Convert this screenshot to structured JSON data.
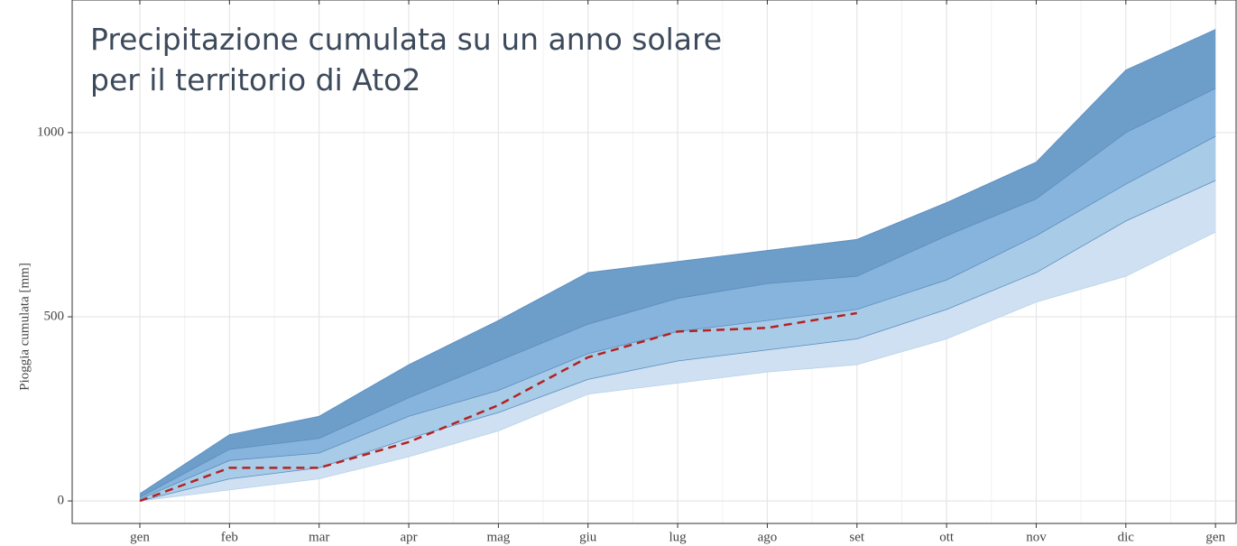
{
  "chart_data": {
    "type": "area",
    "title_lines": [
      "Precipitazione cumulata su un anno solare",
      "per il territorio di Ato2"
    ],
    "y_label": "Pioggia cumulata [mm]",
    "categories": [
      "gen",
      "feb",
      "mar",
      "apr",
      "mag",
      "giu",
      "lug",
      "ago",
      "set",
      "ott",
      "nov",
      "dic",
      "gen"
    ],
    "series": [
      {
        "color": "#6d9dc9",
        "values": [
          20,
          180,
          230,
          370,
          490,
          620,
          650,
          680,
          710,
          810,
          920,
          1170,
          1280
        ]
      },
      {
        "color": "#86b4dc",
        "values": [
          10,
          140,
          170,
          280,
          380,
          480,
          550,
          590,
          610,
          720,
          820,
          1000,
          1120
        ]
      },
      {
        "color": "#a8cbe7",
        "values": [
          5,
          110,
          130,
          230,
          300,
          400,
          460,
          490,
          520,
          600,
          720,
          860,
          990
        ]
      },
      {
        "color": "#cee0f1",
        "values": [
          0,
          60,
          90,
          170,
          240,
          330,
          380,
          410,
          440,
          520,
          620,
          760,
          870
        ]
      },
      {
        "color": "#ffffff",
        "values": [
          0,
          30,
          60,
          120,
          190,
          290,
          320,
          350,
          370,
          440,
          540,
          610,
          730
        ]
      }
    ],
    "observed": {
      "color": "#b22222",
      "values": [
        0,
        90,
        90,
        160,
        260,
        390,
        460,
        470,
        510,
        null,
        null,
        null,
        null
      ]
    },
    "xlim": [
      -0.755,
      12.24
    ],
    "ylim": [
      -61,
      1360
    ],
    "yticks": [
      0,
      500,
      1000
    ],
    "grid": true
  }
}
